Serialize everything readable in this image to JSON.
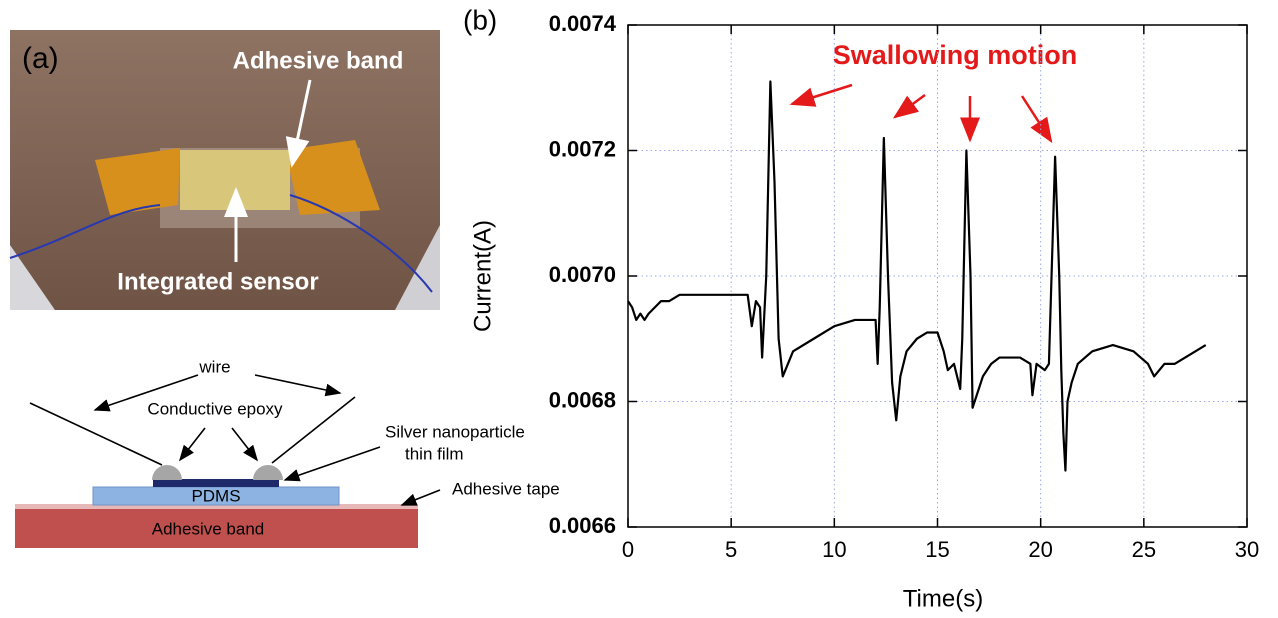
{
  "photo": {
    "panel_label": "(a)",
    "labels": [
      "Adhesive band",
      "Integrated sensor"
    ]
  },
  "diagram": {
    "labels": [
      "wire",
      "Conductive epoxy",
      "Silver nanoparticle",
      "thin film",
      "PDMS",
      "Adhesive tape",
      "Adhesive band"
    ]
  },
  "chart_data": {
    "type": "line",
    "panel_label": "(b)",
    "annotation": "Swallowing motion",
    "xlabel": "Time(s)",
    "ylabel": "Current(A)",
    "color": "#000000",
    "grid": true,
    "xlim": [
      0,
      30
    ],
    "xticks": [
      0,
      5,
      10,
      15,
      20,
      25,
      30
    ],
    "ylim": [
      0.0066,
      0.0074
    ],
    "yticks": [
      0.0066,
      0.0068,
      {
        "value": 0.007,
        "label": "0.0070"
      },
      0.0072,
      0.0074
    ],
    "x": [
      0,
      0.2,
      0.4,
      0.6,
      0.8,
      1.0,
      1.3,
      1.6,
      2.0,
      2.5,
      3,
      4,
      5,
      5.8,
      6.0,
      6.2,
      6.4,
      6.5,
      6.7,
      6.9,
      7.1,
      7.3,
      7.5,
      8,
      9,
      10,
      11,
      12,
      12.1,
      12.2,
      12.4,
      12.6,
      12.8,
      13.0,
      13.2,
      13.5,
      14,
      14.5,
      15,
      15.3,
      15.5,
      15.8,
      16.1,
      16.2,
      16.4,
      16.6,
      16.7,
      16.9,
      17.2,
      17.6,
      18,
      19,
      19.5,
      19.6,
      19.8,
      20.2,
      20.4,
      20.7,
      20.9,
      21.0,
      21.1,
      21.2,
      21.3,
      21.5,
      21.8,
      22.5,
      23.5,
      24.5,
      25.2,
      25.5,
      26,
      26.5,
      27,
      27.5,
      28
    ],
    "values": [
      0.00696,
      0.00695,
      0.00693,
      0.00694,
      0.00693,
      0.00694,
      0.00695,
      0.00696,
      0.00696,
      0.00697,
      0.00697,
      0.00697,
      0.00697,
      0.00697,
      0.00692,
      0.00696,
      0.00695,
      0.00687,
      0.007,
      0.00731,
      0.00715,
      0.0069,
      0.00684,
      0.00688,
      0.0069,
      0.00692,
      0.00693,
      0.00693,
      0.00686,
      0.00695,
      0.00722,
      0.007,
      0.00683,
      0.00677,
      0.00684,
      0.00688,
      0.0069,
      0.00691,
      0.00691,
      0.00688,
      0.00685,
      0.00686,
      0.00682,
      0.0069,
      0.0072,
      0.007,
      0.00679,
      0.00681,
      0.00684,
      0.00686,
      0.00687,
      0.00687,
      0.00686,
      0.00681,
      0.00686,
      0.00685,
      0.00686,
      0.00719,
      0.007,
      0.00685,
      0.00675,
      0.00669,
      0.0068,
      0.00683,
      0.00686,
      0.00688,
      0.00689,
      0.00688,
      0.00686,
      0.00684,
      0.00686,
      0.00686,
      0.00687,
      0.00688,
      0.00689
    ]
  }
}
